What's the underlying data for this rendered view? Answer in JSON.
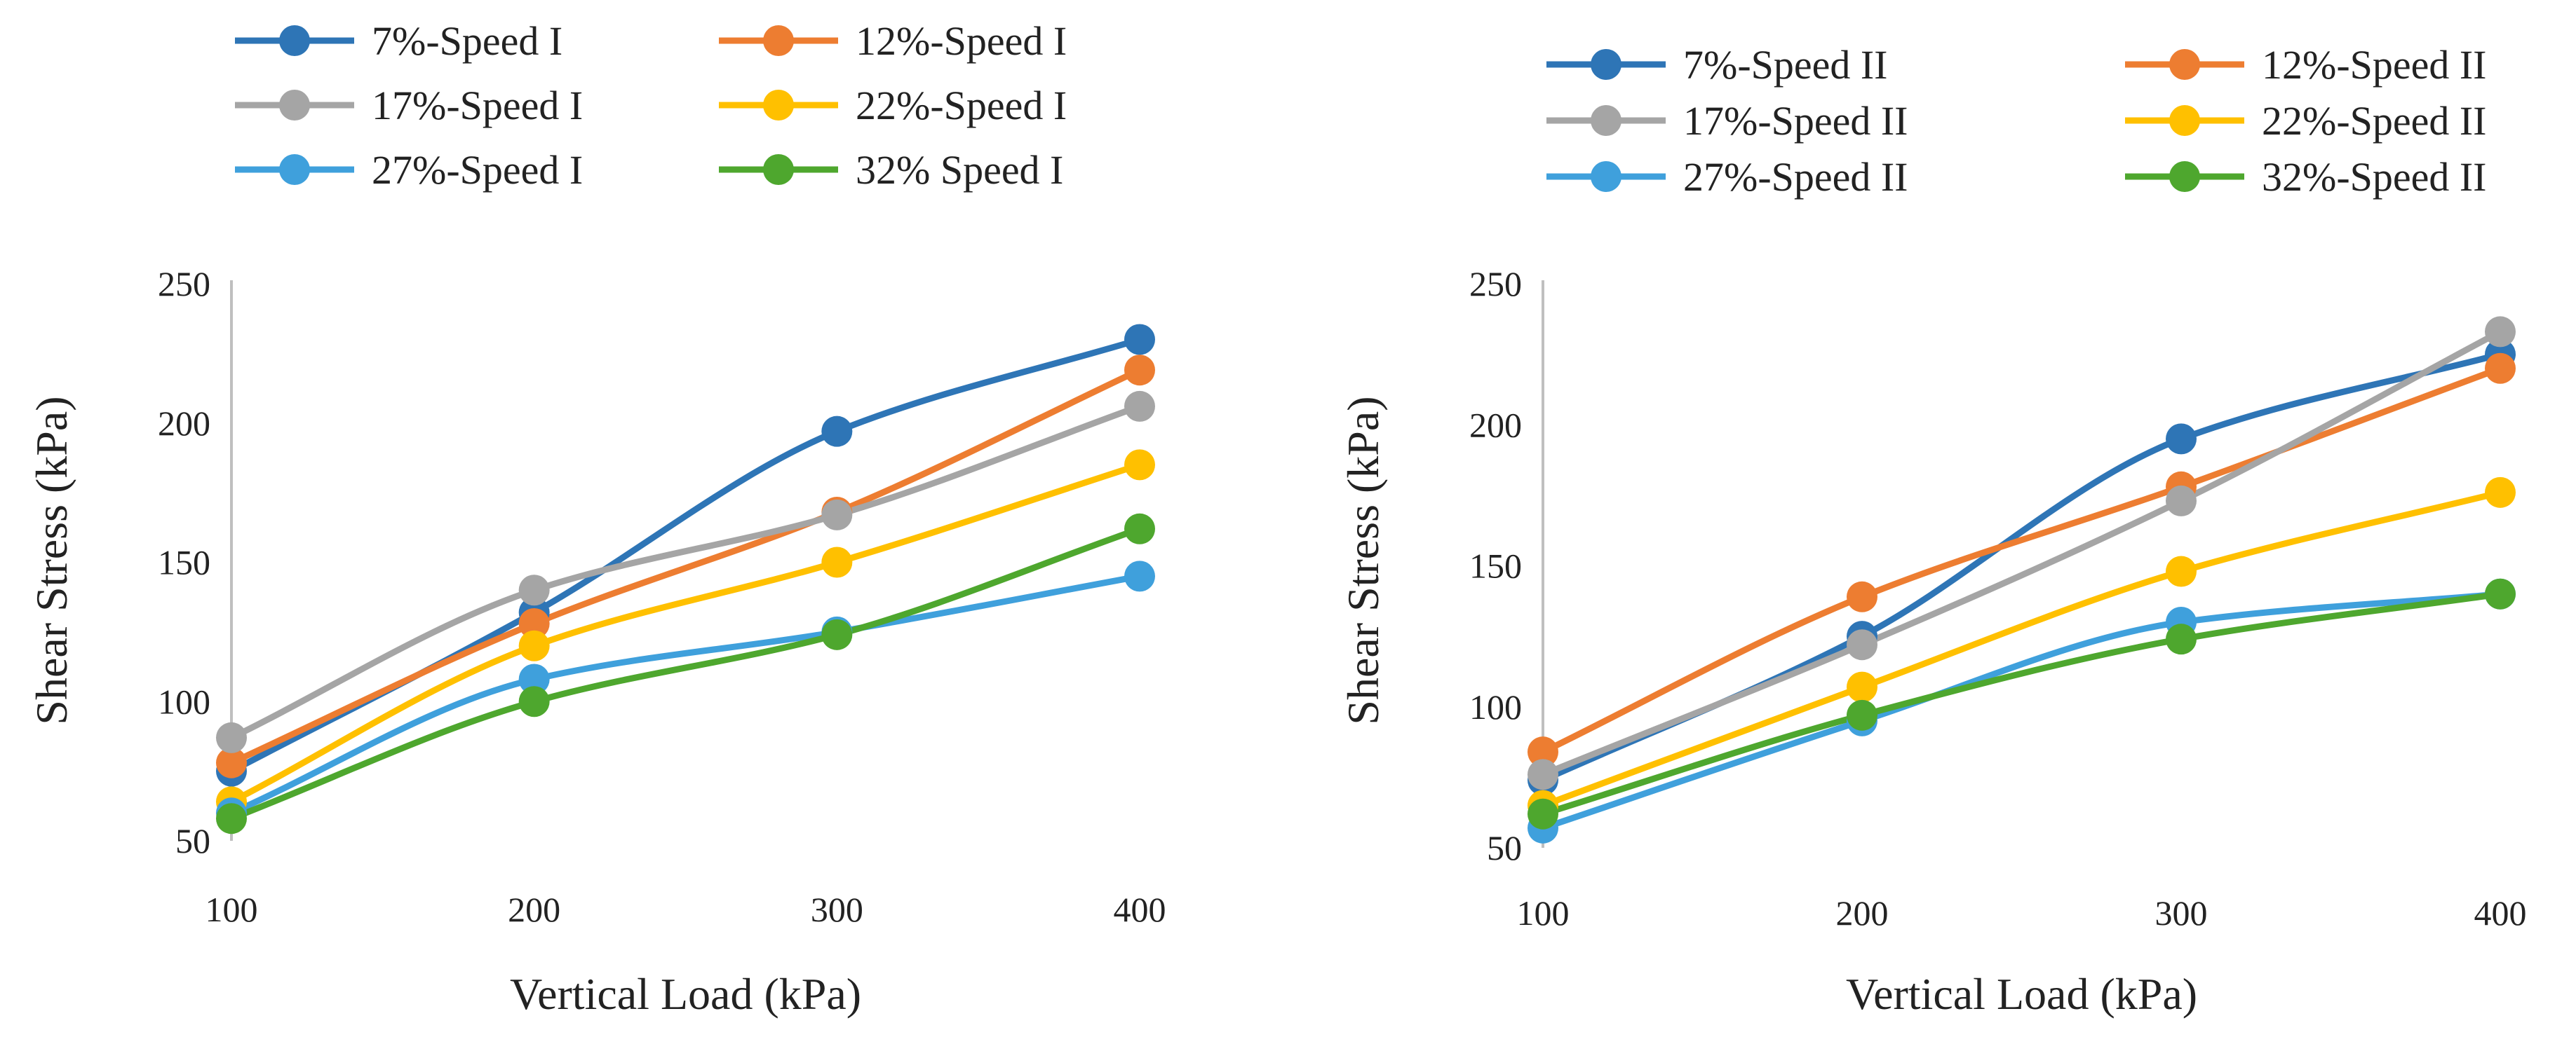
{
  "chart_data": [
    {
      "type": "line",
      "title": "",
      "xlabel": "Vertical Load (kPa)",
      "ylabel": "Shear Stress (kPa)",
      "x": [
        100,
        200,
        300,
        400
      ],
      "xticks": [
        "100",
        "200",
        "300",
        "400"
      ],
      "yticks": [
        "50",
        "100",
        "150",
        "200",
        "250"
      ],
      "ylim": [
        50,
        250
      ],
      "grid": false,
      "legend_position": "top",
      "series": [
        {
          "name": "7%-Speed I",
          "color": "#2E75B6",
          "values": [
            75,
            132,
            197,
            230
          ]
        },
        {
          "name": "12%-Speed I",
          "color": "#ED7D31",
          "values": [
            78,
            128,
            168,
            219
          ]
        },
        {
          "name": "17%-Speed I",
          "color": "#A5A5A5",
          "values": [
            87,
            140,
            167,
            206
          ]
        },
        {
          "name": "22%-Speed I",
          "color": "#FFC000",
          "values": [
            64,
            120,
            150,
            185
          ]
        },
        {
          "name": "27%-Speed I",
          "color": "#3FA0DC",
          "values": [
            60,
            108,
            125,
            145
          ]
        },
        {
          "name": "32% Speed I",
          "color": "#4EA72E",
          "values": [
            58,
            100,
            124,
            162
          ]
        }
      ]
    },
    {
      "type": "line",
      "title": "",
      "xlabel": "Vertical Load (kPa)",
      "ylabel": "Shear Stress (kPa)",
      "x": [
        100,
        200,
        300,
        400
      ],
      "xticks": [
        "100",
        "200",
        "300",
        "400"
      ],
      "yticks": [
        "50",
        "100",
        "150",
        "200",
        "250"
      ],
      "ylim": [
        50,
        250
      ],
      "grid": false,
      "legend_position": "top",
      "series": [
        {
          "name": "7%-Speed II",
          "color": "#2E75B6",
          "values": [
            74,
            125,
            195,
            225
          ]
        },
        {
          "name": "12%-Speed II",
          "color": "#ED7D31",
          "values": [
            84,
            139,
            178,
            220
          ]
        },
        {
          "name": "17%-Speed II",
          "color": "#A5A5A5",
          "values": [
            76,
            122,
            173,
            233
          ]
        },
        {
          "name": "22%-Speed II",
          "color": "#FFC000",
          "values": [
            65,
            107,
            148,
            176
          ]
        },
        {
          "name": "27%-Speed II",
          "color": "#3FA0DC",
          "values": [
            57,
            95,
            130,
            140
          ]
        },
        {
          "name": "32%-Speed II",
          "color": "#4EA72E",
          "values": [
            62,
            97,
            124,
            140
          ]
        }
      ]
    }
  ]
}
